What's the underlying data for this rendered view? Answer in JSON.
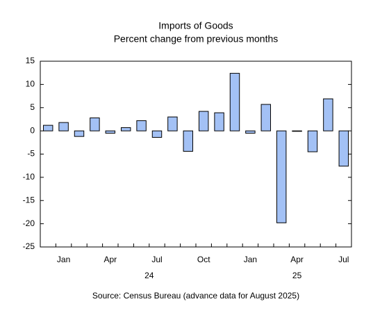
{
  "chart_data": {
    "type": "bar",
    "title": "Imports of Goods",
    "subtitle": "Percent change from previous months",
    "source": "Source: Census Bureau (advance data for August 2025)",
    "categories": [
      null,
      "Jan",
      null,
      null,
      "Apr",
      null,
      null,
      "Jul",
      null,
      null,
      "Oct",
      null,
      null,
      "Jan",
      null,
      null,
      "Apr",
      null,
      null,
      "Jul"
    ],
    "year_labels": [
      "24",
      "25"
    ],
    "values": [
      1.2,
      1.8,
      -1.2,
      2.8,
      -0.5,
      0.7,
      2.2,
      -1.4,
      3.0,
      -4.4,
      4.2,
      3.9,
      12.4,
      -0.5,
      5.7,
      -19.8,
      -0.1,
      -4.5,
      6.9,
      -7.6
    ],
    "color": "#a3c1f5",
    "ylim": [
      -25,
      15
    ],
    "yticks": [
      -25,
      -20,
      -15,
      -10,
      -5,
      0,
      5,
      10,
      15
    ],
    "grid": false
  }
}
